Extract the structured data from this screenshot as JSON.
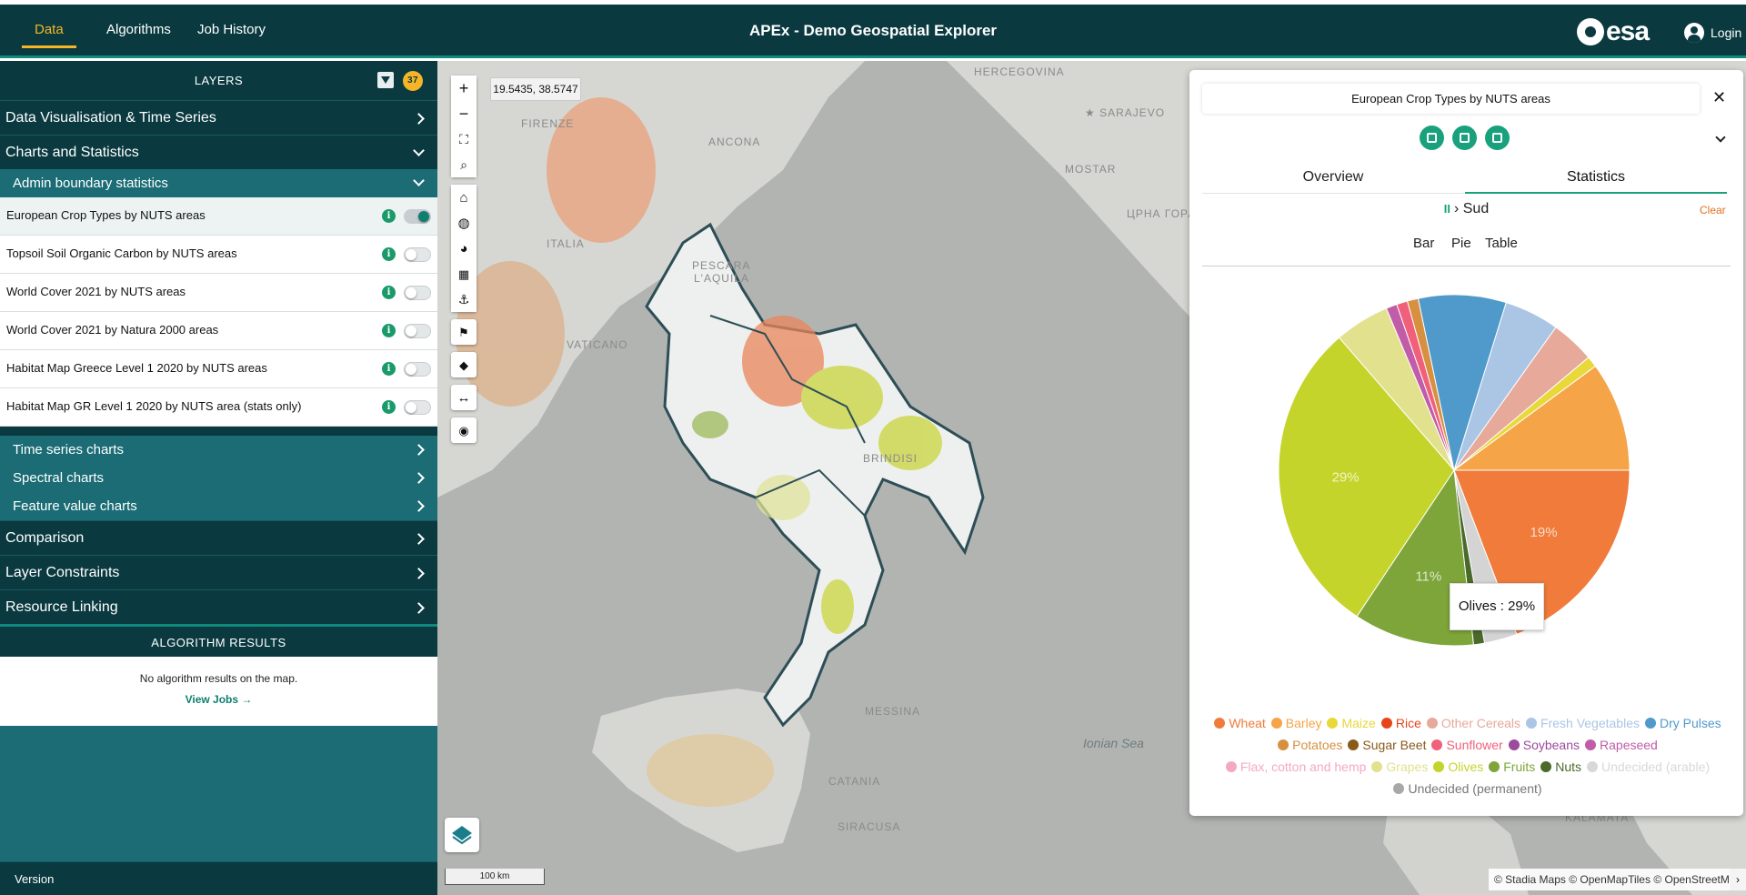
{
  "topbar": {
    "tabs": [
      "Data",
      "Algorithms",
      "Job History"
    ],
    "active_tab": "Data",
    "title": "APEx - Demo Geospatial Explorer",
    "logo_text": "esa",
    "login_label": "Login"
  },
  "sidebar": {
    "layers_header": "LAYERS",
    "layers_count": "37",
    "sections": {
      "data_vis": "Data Visualisation & Time Series",
      "charts_stats": "Charts and Statistics",
      "admin_boundary": "Admin boundary statistics",
      "time_series": "Time series charts",
      "spectral": "Spectral charts",
      "feature_value": "Feature value charts",
      "comparison": "Comparison",
      "layer_constraints": "Layer Constraints",
      "resource_linking": "Resource Linking"
    },
    "layers": [
      {
        "label": "European Crop Types by NUTS areas",
        "enabled": true
      },
      {
        "label": "Topsoil Soil Organic Carbon by NUTS areas",
        "enabled": false
      },
      {
        "label": "World Cover 2021 by NUTS areas",
        "enabled": false
      },
      {
        "label": "World Cover 2021 by Natura 2000 areas",
        "enabled": false
      },
      {
        "label": "Habitat Map Greece Level 1 2020 by NUTS areas",
        "enabled": false
      },
      {
        "label": "Habitat Map GR Level 1 2020 by NUTS area (stats only)",
        "enabled": false
      }
    ],
    "algorithm_results": {
      "header": "ALGORITHM RESULTS",
      "empty_text": "No algorithm results on the map.",
      "view_jobs": "View Jobs →"
    },
    "version_label": "Version"
  },
  "map": {
    "coordinates": "19.5435, 38.5747",
    "labels": {
      "hercegovina": "HERCEGOVINA",
      "sarajevo": "★ SARAJEVO",
      "mostar": "MOSTAR",
      "montenegro": "ЦРНА ГОРА",
      "ionian": "Ionian Sea",
      "italia": "ITALIA",
      "pescara": "PESCARA",
      "laquila": "L'AQUILA",
      "ancona": "ANCONA",
      "firenze": "FIRENZE",
      "vaticano": "VATICANO",
      "messina": "MESSINA",
      "catania": "CATANIA",
      "siracusa": "SIRACUSA",
      "brindisi": "BRINDISI",
      "kalamata": "KALAMATA"
    },
    "scale_label": "100 km",
    "attribution": "© Stadia Maps © OpenMapTiles © OpenStreetMap"
  },
  "panel": {
    "title": "European Crop Types by NUTS areas",
    "close": "✕",
    "tabs": [
      "Overview",
      "Statistics"
    ],
    "active_tab": "Statistics",
    "breadcrumb_icon": "II",
    "breadcrumb": "› Sud",
    "clear_label": "Clear",
    "view_tabs": [
      "Bar",
      "Pie",
      "Table"
    ],
    "tooltip": "Olives : 29%"
  },
  "chart_data": {
    "type": "pie",
    "slices": [
      {
        "name": "Wheat",
        "value": 19,
        "color": "#f07b3a",
        "label": "19%"
      },
      {
        "name": "Undecided (permanent)",
        "value": 3,
        "color": "#d4d4d4"
      },
      {
        "name": "Nuts",
        "value": 1,
        "color": "#4a6a2a"
      },
      {
        "name": "Fruits",
        "value": 11,
        "color": "#7ea53a",
        "label": "11%"
      },
      {
        "name": "Olives",
        "value": 29,
        "color": "#c5d42b",
        "label": "29%"
      },
      {
        "name": "Grapes",
        "value": 5,
        "color": "#e1e18e"
      },
      {
        "name": "Rapeseed",
        "value": 1,
        "color": "#c05ca8"
      },
      {
        "name": "Sunflower",
        "value": 1,
        "color": "#f0607a"
      },
      {
        "name": "Potatoes",
        "value": 1,
        "color": "#d79040"
      },
      {
        "name": "Dry Pulses",
        "value": 8,
        "color": "#4f9acb"
      },
      {
        "name": "Fresh Vegetables",
        "value": 5,
        "color": "#abc5e5"
      },
      {
        "name": "Other Cereals",
        "value": 4,
        "color": "#e6a99a"
      },
      {
        "name": "Maize",
        "value": 1,
        "color": "#e8d83a"
      },
      {
        "name": "Barley",
        "value": 10,
        "color": "#f5a448"
      }
    ],
    "legend": [
      {
        "name": "Wheat",
        "color": "#f07b3a"
      },
      {
        "name": "Barley",
        "color": "#f5a448"
      },
      {
        "name": "Maize",
        "color": "#e8d83a"
      },
      {
        "name": "Rice",
        "color": "#e8441a"
      },
      {
        "name": "Other Cereals",
        "color": "#e6a99a"
      },
      {
        "name": "Fresh Vegetables",
        "color": "#abc5e5"
      },
      {
        "name": "Dry Pulses",
        "color": "#4f9acb"
      },
      {
        "name": "Potatoes",
        "color": "#d79040"
      },
      {
        "name": "Sugar Beet",
        "color": "#8a5a1a"
      },
      {
        "name": "Sunflower",
        "color": "#f0607a"
      },
      {
        "name": "Soybeans",
        "color": "#9c4a9c"
      },
      {
        "name": "Rapeseed",
        "color": "#c05ca8"
      },
      {
        "name": "Flax, cotton and hemp",
        "color": "#f4a8c6"
      },
      {
        "name": "Grapes",
        "color": "#e1e18e"
      },
      {
        "name": "Olives",
        "color": "#c5d42b"
      },
      {
        "name": "Fruits",
        "color": "#7ea53a"
      },
      {
        "name": "Nuts",
        "color": "#4a6a2a"
      },
      {
        "name": "Undecided (arable)",
        "color": "#d8d8d8"
      },
      {
        "name": "Undecided (permanent)",
        "color": "#a8a8a8"
      }
    ]
  }
}
